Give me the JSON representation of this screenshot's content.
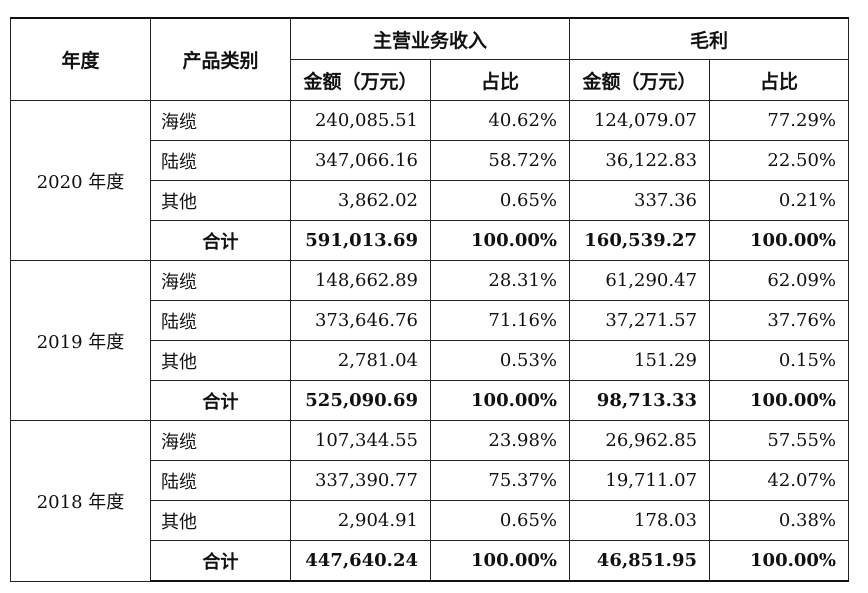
{
  "header": {
    "year": "年度",
    "category": "产品类别",
    "revenue_group": "主营业务收入",
    "profit_group": "毛利",
    "amount": "金额（万元）",
    "share": "占比"
  },
  "years": [
    {
      "label": "2020 年度",
      "rows": [
        {
          "category": "海缆",
          "revenue": "240,085.51",
          "revenue_share": "40.62%",
          "profit": "124,079.07",
          "profit_share": "77.29%"
        },
        {
          "category": "陆缆",
          "revenue": "347,066.16",
          "revenue_share": "58.72%",
          "profit": "36,122.83",
          "profit_share": "22.50%"
        },
        {
          "category": "其他",
          "revenue": "3,862.02",
          "revenue_share": "0.65%",
          "profit": "337.36",
          "profit_share": "0.21%"
        },
        {
          "category": "合计",
          "revenue": "591,013.69",
          "revenue_share": "100.00%",
          "profit": "160,539.27",
          "profit_share": "100.00%"
        }
      ]
    },
    {
      "label": "2019 年度",
      "rows": [
        {
          "category": "海缆",
          "revenue": "148,662.89",
          "revenue_share": "28.31%",
          "profit": "61,290.47",
          "profit_share": "62.09%"
        },
        {
          "category": "陆缆",
          "revenue": "373,646.76",
          "revenue_share": "71.16%",
          "profit": "37,271.57",
          "profit_share": "37.76%"
        },
        {
          "category": "其他",
          "revenue": "2,781.04",
          "revenue_share": "0.53%",
          "profit": "151.29",
          "profit_share": "0.15%"
        },
        {
          "category": "合计",
          "revenue": "525,090.69",
          "revenue_share": "100.00%",
          "profit": "98,713.33",
          "profit_share": "100.00%"
        }
      ]
    },
    {
      "label": "2018 年度",
      "rows": [
        {
          "category": "海缆",
          "revenue": "107,344.55",
          "revenue_share": "23.98%",
          "profit": "26,962.85",
          "profit_share": "57.55%"
        },
        {
          "category": "陆缆",
          "revenue": "337,390.77",
          "revenue_share": "75.37%",
          "profit": "19,711.07",
          "profit_share": "42.07%"
        },
        {
          "category": "其他",
          "revenue": "2,904.91",
          "revenue_share": "0.65%",
          "profit": "178.03",
          "profit_share": "0.38%"
        },
        {
          "category": "合计",
          "revenue": "447,640.24",
          "revenue_share": "100.00%",
          "profit": "46,851.95",
          "profit_share": "100.00%"
        }
      ]
    }
  ]
}
